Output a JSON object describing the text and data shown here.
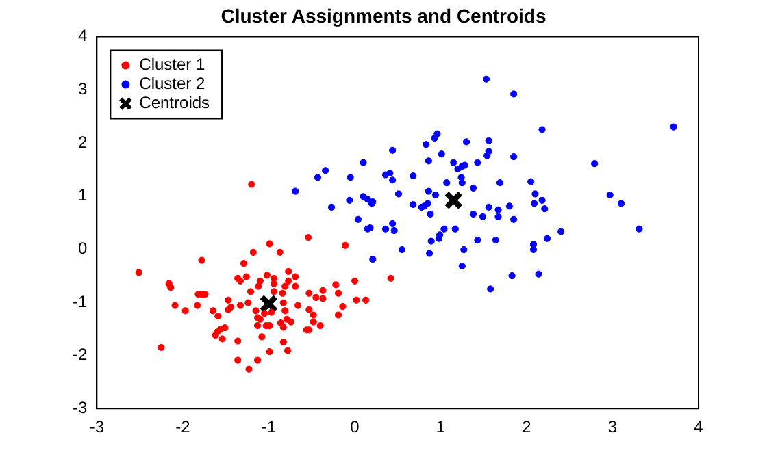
{
  "chart_data": {
    "type": "scatter",
    "title": "Cluster Assignments and Centroids",
    "marker": "circle",
    "legend": "top left",
    "grid": false,
    "xlim": [
      -3,
      4
    ],
    "xticks": [
      -3,
      -2,
      -1,
      0,
      1,
      2,
      3,
      4
    ],
    "ylim": [
      -3,
      4
    ],
    "yticks": [
      -3,
      -2,
      -1,
      0,
      1,
      2,
      3,
      4
    ],
    "series": [
      {
        "name": "Cluster 1",
        "color": "#ff0000",
        "x": [
          -2.51,
          -2.25,
          -2.16,
          -2.14,
          -2.09,
          -1.97,
          -1.83,
          -1.82,
          -1.78,
          -1.74,
          -1.78,
          -1.65,
          -1.59,
          -1.62,
          -1.6,
          -1.56,
          -1.51,
          -1.54,
          -1.47,
          -1.47,
          -1.44,
          -1.36,
          -1.36,
          -1.23,
          -1.13,
          -0.99,
          -0.83,
          -0.78,
          -1.29,
          -1.18,
          -1.2,
          -0.99,
          -0.87,
          -0.54,
          -0.11,
          0.42,
          0,
          0.02,
          0.13,
          -0.22,
          -0.19,
          -0.14,
          -0.19,
          -0.37,
          -0.37,
          -0.45,
          -0.53,
          -0.53,
          -0.48,
          -0.48,
          -0.4,
          -0.56,
          -0.53,
          -0.66,
          -0.69,
          -0.69,
          -0.77,
          -0.77,
          -0.81,
          -0.84,
          -0.83,
          -0.81,
          -0.79,
          -0.74,
          -0.86,
          -0.83,
          -0.94,
          -0.94,
          -1.02,
          -1.1,
          -1.12,
          -0.94,
          -0.97,
          -1.05,
          -1.13,
          -1.13,
          -1.03,
          -0.99,
          -1.08,
          -1.21,
          -1.24,
          -1.33,
          -1.36,
          -1.33,
          -1.26,
          -1.15,
          -1.1
        ],
        "values": [
          -0.44,
          -1.85,
          -0.65,
          -0.72,
          -1.06,
          -1.16,
          -1.06,
          -0.85,
          -0.85,
          -0.85,
          -0.21,
          -1.16,
          -1.26,
          -1.62,
          -1.56,
          -1.51,
          -1.48,
          -1.69,
          -0.96,
          -1.14,
          -1.09,
          -1.73,
          -2.09,
          -2.26,
          -2.09,
          -1.93,
          -1.75,
          -1.91,
          -0.27,
          -0.06,
          1.22,
          0.1,
          -0.06,
          0.22,
          0.07,
          -0.55,
          -0.6,
          -0.96,
          -0.96,
          -0.67,
          -0.83,
          -1.08,
          -1.24,
          -0.78,
          -0.93,
          -0.91,
          -0.83,
          -1.14,
          -1.24,
          -1.37,
          -1.44,
          -1.52,
          -1.52,
          -1.06,
          -0.52,
          -0.7,
          -0.42,
          -0.6,
          -0.7,
          -0.83,
          -1.01,
          -1.16,
          -1.32,
          -1.37,
          -1.39,
          -1.47,
          -0.55,
          -0.65,
          -0.49,
          -0.6,
          -0.7,
          -0.8,
          -1.19,
          -1.21,
          -1.29,
          -1.44,
          -1.44,
          -1.44,
          -1.65,
          -0.8,
          -1.01,
          -1.06,
          -0.55,
          -0.6,
          -0.52,
          -1.16,
          -1.32
        ]
      },
      {
        "name": "Cluster 2",
        "color": "#0000ff",
        "x": [
          0.21,
          -0.69,
          -0.43,
          -0.34,
          -0.27,
          -0.06,
          -0.05,
          0.04,
          0.1,
          0.1,
          0.15,
          0.2,
          0.21,
          0.15,
          0.18,
          0.36,
          0.41,
          0.44,
          0.44,
          0.36,
          0.44,
          0.46,
          0.51,
          0.55,
          0.68,
          0.68,
          0.78,
          0.81,
          0.85,
          0.86,
          0.88,
          0.83,
          0.93,
          0.96,
          0.86,
          1.01,
          0.94,
          1.07,
          1.04,
          0.99,
          0.98,
          0.89,
          0.87,
          1.17,
          1.15,
          1.2,
          1.25,
          1.28,
          1.24,
          1.25,
          1.3,
          1.38,
          1.38,
          1.43,
          1.27,
          1.25,
          1.43,
          1.49,
          1.56,
          1.56,
          1.54,
          1.53,
          1.56,
          1.58,
          1.64,
          1.69,
          1.67,
          1.67,
          1.8,
          1.85,
          1.85,
          1.85,
          1.83,
          2.05,
          2.1,
          2.09,
          2.18,
          2.21,
          2.18,
          2.24,
          2.08,
          2.08,
          2.14,
          3.71,
          2.79,
          2.97,
          3.1,
          3.31,
          2.4
        ],
        "values": [
          -0.19,
          1.09,
          1.35,
          1.48,
          0.79,
          0.92,
          1.35,
          0.56,
          1.63,
          0.99,
          0.94,
          0.86,
          0.89,
          0.38,
          0.4,
          1.4,
          1.43,
          1.3,
          1.86,
          0.38,
          0.48,
          0.35,
          1.04,
          -0.01,
          1.38,
          0.84,
          0.79,
          0.81,
          0.86,
          1.09,
          0.66,
          1.97,
          2.09,
          2.17,
          1.66,
          1.79,
          1.02,
          1.25,
          0.38,
          0.27,
          0.2,
          0.15,
          -0.08,
          0.38,
          1.63,
          1.51,
          1.56,
          1.58,
          1.35,
          1.25,
          2.02,
          1.15,
          0.66,
          1.63,
          -0.01,
          -0.32,
          0.17,
          0.61,
          2.04,
          1.84,
          1.76,
          3.2,
          0.79,
          -0.75,
          0.17,
          1.25,
          0.74,
          0.61,
          0.81,
          2.92,
          1.74,
          0.56,
          -0.5,
          1.27,
          1.04,
          0.86,
          0.92,
          0.76,
          2.25,
          0.2,
          0.09,
          -0.01,
          -0.47,
          2.3,
          1.61,
          1.02,
          0.86,
          0.38,
          0.33
        ]
      },
      {
        "name": "Centroids",
        "color": "#000000",
        "marker": "cross",
        "x": [
          -1.0,
          1.15
        ],
        "values": [
          -1.03,
          0.92
        ]
      }
    ]
  }
}
